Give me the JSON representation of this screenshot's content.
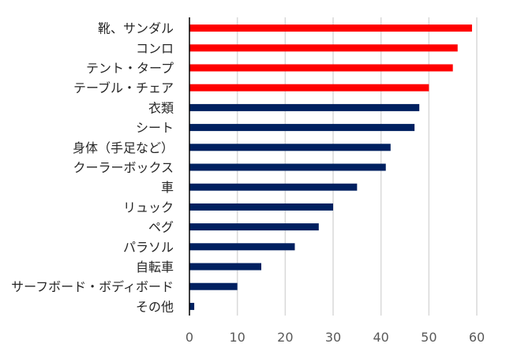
{
  "chart_data": {
    "type": "bar",
    "orientation": "horizontal",
    "categories": [
      "靴、サンダル",
      "コンロ",
      "テント・タープ",
      "テーブル・チェア",
      "衣類",
      "シート",
      "身体（手足など）",
      "クーラーボックス",
      "車",
      "リュック",
      "ペグ",
      "パラソル",
      "自転車",
      "サーフボード・ボディボード",
      "その他"
    ],
    "values": [
      59,
      56,
      55,
      50,
      48,
      47,
      42,
      41,
      35,
      30,
      27,
      22,
      15,
      10,
      1
    ],
    "highlighted": [
      true,
      true,
      true,
      true,
      false,
      false,
      false,
      false,
      false,
      false,
      false,
      false,
      false,
      false,
      false
    ],
    "colors": {
      "highlight": "#ff0000",
      "default": "#002060",
      "grid": "#d9d9d9",
      "axis": "#000000"
    },
    "xlim": [
      0,
      60
    ],
    "xticks": [
      "0",
      "10",
      "20",
      "30",
      "40",
      "50",
      "60"
    ],
    "grid": true,
    "legend": "none",
    "title": "",
    "xlabel": "",
    "ylabel": ""
  }
}
